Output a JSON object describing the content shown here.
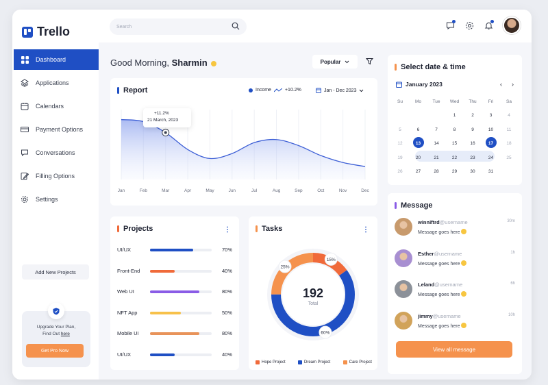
{
  "app": {
    "name": "Trello"
  },
  "sidebar": {
    "items": [
      {
        "label": "Dashboard",
        "icon": "grid-icon",
        "active": true
      },
      {
        "label": "Applications",
        "icon": "layers-icon"
      },
      {
        "label": "Calendars",
        "icon": "calendar-icon"
      },
      {
        "label": "Payment Options",
        "icon": "card-icon"
      },
      {
        "label": "Conversations",
        "icon": "chat-icon"
      },
      {
        "label": "Filling Options",
        "icon": "edit-icon"
      },
      {
        "label": "Settings",
        "icon": "gear-icon"
      }
    ],
    "add_projects": "Add New Projects",
    "upgrade": {
      "line1": "Upgrade Your Plan,",
      "line2_prefix": "Find Out",
      "line2_link": "here",
      "button": "Get Pro Now"
    }
  },
  "topbar": {
    "search_placeholder": "Search"
  },
  "greeting": {
    "prefix": "Good Morning,",
    "name": "Sharmin"
  },
  "filter": {
    "popular": "Popular"
  },
  "report": {
    "title": "Report",
    "legend": "Income",
    "legend_change": "+10.2%",
    "date_range": "Jan - Dec 2023",
    "tooltip": {
      "change": "+11.2%",
      "date": "21 March, 2023"
    }
  },
  "chart_data": {
    "type": "area",
    "categories": [
      "Jan",
      "Feb",
      "Mar",
      "Apr",
      "May",
      "Jun",
      "Jul",
      "Aug",
      "Sep",
      "Oct",
      "Nov",
      "Dec"
    ],
    "series": [
      {
        "name": "Income",
        "values": [
          60,
          58,
          47,
          30,
          21,
          26,
          37,
          40,
          34,
          24,
          17,
          13
        ]
      }
    ],
    "ylim": [
      0,
      70
    ],
    "grid": true
  },
  "projects": {
    "title": "Projects",
    "items": [
      {
        "name": "UI/UX",
        "value": 70,
        "display": "70%",
        "color": "#1f4fc4"
      },
      {
        "name": "Front-End",
        "value": 40,
        "display": "40%",
        "color": "#f06a3a"
      },
      {
        "name": "Web UI",
        "value": 80,
        "display": "80%",
        "color": "#8a5ce6"
      },
      {
        "name": "NFT App",
        "value": 50,
        "display": "50%",
        "color": "#f7c14a"
      },
      {
        "name": "Mobile UI",
        "value": 80,
        "display": "80%",
        "color": "#e8935a"
      },
      {
        "name": "UI/UX",
        "value": 40,
        "display": "40%",
        "color": "#1f4fc4"
      }
    ]
  },
  "tasks": {
    "title": "Tasks",
    "total": "192",
    "total_label": "Total",
    "slices": [
      {
        "name": "Hope Project",
        "value": 15,
        "label": "15%",
        "color": "#f06a3a"
      },
      {
        "name": "Dream Project",
        "value": 60,
        "label": "60%",
        "color": "#1f4fc4"
      },
      {
        "name": "Care Project",
        "value": 25,
        "label": "25%",
        "color": "#f5924d"
      }
    ]
  },
  "calendar": {
    "title": "Select date & time",
    "month": "January 2023",
    "days": [
      "Su",
      "Mo",
      "Tue",
      "Wed",
      "Thu",
      "Fri",
      "Sa"
    ],
    "weeks": [
      [
        "",
        "",
        "",
        "1",
        "2",
        "3",
        "4"
      ],
      [
        "5",
        "6",
        "7",
        "8",
        "9",
        "10",
        "11"
      ],
      [
        "12",
        "13",
        "14",
        "15",
        "16",
        "17",
        "18"
      ],
      [
        "19",
        "20",
        "21",
        "22",
        "23",
        "24",
        "25"
      ],
      [
        "26",
        "27",
        "28",
        "29",
        "30",
        "31",
        ""
      ]
    ],
    "selected": [
      "13",
      "17"
    ]
  },
  "message": {
    "title": "Message",
    "items": [
      {
        "name": "winniftrd",
        "user": "@username",
        "text": "Message goes here",
        "time": "30m",
        "avatar": "#c89a6c"
      },
      {
        "name": "Esther",
        "user": "@username",
        "text": "Message goes here",
        "time": "1h",
        "avatar": "#a88fd1"
      },
      {
        "name": "Leland",
        "user": "@username",
        "text": "Message goes here",
        "time": "6h",
        "avatar": "#8c9199"
      },
      {
        "name": "jimmy",
        "user": "@username",
        "text": "Message goes here",
        "time": "10h",
        "avatar": "#d1a35a"
      }
    ],
    "view_all": "View all message"
  }
}
